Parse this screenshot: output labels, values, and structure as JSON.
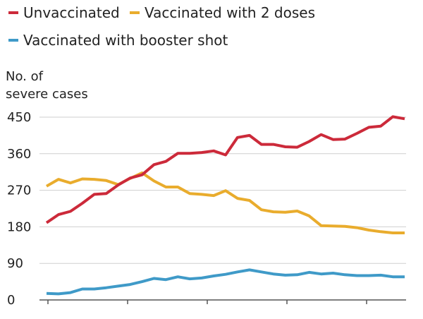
{
  "chart_data": {
    "type": "line",
    "title": "",
    "ylabel_lines": [
      "No. of",
      "severe cases"
    ],
    "xlabel": "",
    "ylim": [
      0,
      450
    ],
    "y_ticks": [
      0,
      90,
      180,
      270,
      360,
      450
    ],
    "x_tick_count": 5,
    "grid": true,
    "legend_position": "top-left",
    "series": [
      {
        "name": "Unvaccinated",
        "color": "#cc2a3a",
        "values": [
          190,
          210,
          218,
          238,
          260,
          262,
          283,
          300,
          308,
          333,
          341,
          361,
          361,
          363,
          367,
          357,
          400,
          405,
          383,
          383,
          377,
          376,
          390,
          407,
          395,
          396,
          410,
          425,
          428,
          451,
          446
        ]
      },
      {
        "name": "Vaccinated with 2 doses",
        "color": "#e9ac2d",
        "values": [
          280,
          297,
          288,
          298,
          297,
          294,
          284,
          299,
          313,
          293,
          278,
          278,
          262,
          260,
          257,
          269,
          250,
          245,
          222,
          217,
          216,
          219,
          207,
          183,
          182,
          181,
          178,
          172,
          168,
          165,
          165
        ]
      },
      {
        "name": "Vaccinated with booster shot",
        "color": "#3f9ac8",
        "values": [
          16,
          15,
          18,
          27,
          27,
          30,
          34,
          38,
          45,
          53,
          50,
          57,
          52,
          54,
          59,
          63,
          69,
          74,
          69,
          64,
          61,
          62,
          68,
          64,
          66,
          62,
          60,
          60,
          61,
          57,
          57
        ]
      }
    ]
  }
}
